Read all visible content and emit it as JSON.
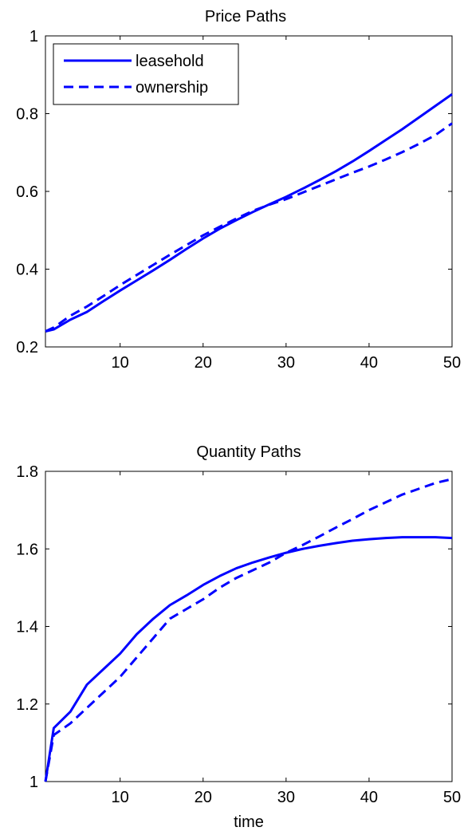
{
  "chart_data": [
    {
      "type": "line",
      "title": "Price Paths",
      "xlabel": "",
      "ylabel": "",
      "xlim": [
        1,
        50
      ],
      "ylim": [
        0.2,
        1.0
      ],
      "xticks": [
        10,
        20,
        30,
        40,
        50
      ],
      "yticks": [
        0.2,
        0.4,
        0.6,
        0.8,
        1.0
      ],
      "xtick_labels": [
        "10",
        "20",
        "30",
        "40",
        "50"
      ],
      "ytick_labels": [
        "0.2",
        "0.4",
        "0.6",
        "0.8",
        "1"
      ],
      "legend": {
        "location": "top-left",
        "entries": [
          "leasehold",
          "ownership"
        ]
      },
      "grid": false,
      "series": [
        {
          "name": "leasehold",
          "style": "solid",
          "color": "#0000ff",
          "x": [
            1,
            2,
            4,
            6,
            8,
            10,
            12,
            14,
            16,
            18,
            20,
            22,
            24,
            26,
            28,
            30,
            32,
            34,
            36,
            38,
            40,
            42,
            44,
            46,
            48,
            50
          ],
          "y": [
            0.24,
            0.245,
            0.27,
            0.29,
            0.318,
            0.345,
            0.371,
            0.397,
            0.424,
            0.452,
            0.479,
            0.504,
            0.526,
            0.547,
            0.567,
            0.586,
            0.607,
            0.629,
            0.652,
            0.677,
            0.704,
            0.732,
            0.76,
            0.79,
            0.82,
            0.85
          ]
        },
        {
          "name": "ownership",
          "style": "dashed",
          "color": "#0000ff",
          "x": [
            1,
            2,
            4,
            6,
            8,
            10,
            12,
            14,
            16,
            18,
            20,
            22,
            24,
            26,
            28,
            30,
            32,
            34,
            36,
            38,
            40,
            42,
            44,
            46,
            48,
            50
          ],
          "y": [
            0.24,
            0.25,
            0.28,
            0.304,
            0.331,
            0.359,
            0.385,
            0.411,
            0.437,
            0.462,
            0.487,
            0.509,
            0.53,
            0.55,
            0.566,
            0.58,
            0.597,
            0.614,
            0.631,
            0.648,
            0.664,
            0.682,
            0.701,
            0.722,
            0.745,
            0.775
          ]
        }
      ]
    },
    {
      "type": "line",
      "title": "Quantity Paths",
      "xlabel": "time",
      "ylabel": "",
      "xlim": [
        1,
        50
      ],
      "ylim": [
        1.0,
        1.8
      ],
      "xticks": [
        10,
        20,
        30,
        40,
        50
      ],
      "yticks": [
        1.0,
        1.2,
        1.4,
        1.6,
        1.8
      ],
      "xtick_labels": [
        "10",
        "20",
        "30",
        "40",
        "50"
      ],
      "ytick_labels": [
        "1",
        "1.2",
        "1.4",
        "1.6",
        "1.8"
      ],
      "grid": false,
      "series": [
        {
          "name": "leasehold",
          "style": "solid",
          "color": "#0000ff",
          "x": [
            1,
            2,
            4,
            6,
            8,
            10,
            12,
            14,
            16,
            18,
            20,
            22,
            24,
            26,
            28,
            30,
            32,
            34,
            36,
            38,
            40,
            42,
            44,
            46,
            48,
            50
          ],
          "y": [
            1.0,
            1.138,
            1.18,
            1.25,
            1.29,
            1.33,
            1.38,
            1.42,
            1.455,
            1.48,
            1.507,
            1.53,
            1.55,
            1.565,
            1.578,
            1.59,
            1.6,
            1.608,
            1.615,
            1.621,
            1.625,
            1.628,
            1.63,
            1.63,
            1.63,
            1.628
          ]
        },
        {
          "name": "ownership",
          "style": "dashed",
          "color": "#0000ff",
          "x": [
            1,
            2,
            4,
            6,
            8,
            10,
            12,
            14,
            16,
            18,
            20,
            22,
            24,
            26,
            28,
            30,
            32,
            34,
            36,
            38,
            40,
            42,
            44,
            46,
            48,
            50
          ],
          "y": [
            1.0,
            1.12,
            1.15,
            1.19,
            1.23,
            1.27,
            1.32,
            1.37,
            1.42,
            1.445,
            1.47,
            1.5,
            1.525,
            1.545,
            1.565,
            1.59,
            1.61,
            1.632,
            1.655,
            1.677,
            1.7,
            1.72,
            1.74,
            1.755,
            1.77,
            1.78
          ]
        }
      ]
    }
  ]
}
